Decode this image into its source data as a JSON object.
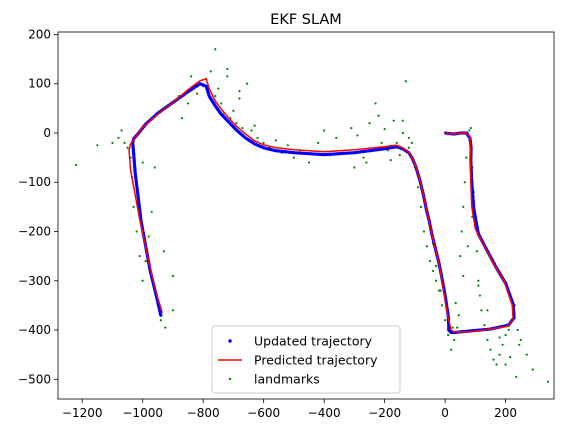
{
  "chart_data": {
    "type": "scatter",
    "title": "EKF SLAM",
    "xlabel": "",
    "ylabel": "",
    "xlim": [
      -1280,
      360
    ],
    "ylim": [
      -540,
      205
    ],
    "xticks": [
      -1200,
      -1000,
      -800,
      -600,
      -400,
      -200,
      0,
      200
    ],
    "yticks": [
      200,
      100,
      0,
      -100,
      -200,
      -300,
      -400,
      -500
    ],
    "grid": false,
    "legend_position": "bottom-center",
    "colors": {
      "updated": "#0000ff",
      "predicted": "#ff0000",
      "landmarks": "#008000"
    },
    "series": [
      {
        "name": "Updated trajectory",
        "style": "points",
        "x": [
          -940,
          -955,
          -975,
          -990,
          -1005,
          -1015,
          -1025,
          -1030,
          -1033,
          -1030,
          -1020,
          -990,
          -950,
          -900,
          -850,
          -810,
          -790,
          -780,
          -760,
          -740,
          -715,
          -690,
          -660,
          -630,
          -600,
          -560,
          -500,
          -450,
          -400,
          -350,
          -300,
          -250,
          -200,
          -180,
          -160,
          -140,
          -120,
          -108,
          -96,
          -84,
          -72,
          -62,
          -52,
          -44,
          -36,
          -28,
          -20,
          -12,
          0,
          10,
          12,
          12,
          20,
          30,
          80,
          150,
          210,
          228,
          225,
          200,
          168,
          140,
          110,
          95,
          88,
          85,
          86,
          82,
          70,
          50,
          30,
          10,
          2
        ],
        "y": [
          -370,
          -330,
          -280,
          -230,
          -180,
          -130,
          -80,
          -40,
          -20,
          -12,
          -5,
          18,
          40,
          62,
          84,
          100,
          95,
          75,
          55,
          38,
          22,
          6,
          -10,
          -22,
          -30,
          -36,
          -40,
          -42,
          -44,
          -42,
          -40,
          -36,
          -32,
          -30,
          -28,
          -32,
          -40,
          -52,
          -70,
          -95,
          -125,
          -155,
          -180,
          -205,
          -225,
          -245,
          -265,
          -290,
          -330,
          -370,
          -390,
          -400,
          -405,
          -405,
          -402,
          -398,
          -390,
          -375,
          -348,
          -305,
          -272,
          -240,
          -205,
          -155,
          -100,
          -55,
          -30,
          -10,
          0,
          0,
          -2,
          -1,
          0
        ]
      },
      {
        "name": "Predicted trajectory",
        "style": "line",
        "x": [
          -935,
          -955,
          -975,
          -992,
          -1010,
          -1025,
          -1040,
          -1045,
          -1040,
          -1000,
          -950,
          -900,
          -850,
          -810,
          -790,
          -780,
          -760,
          -740,
          -715,
          -690,
          -660,
          -630,
          -600,
          -560,
          -500,
          -450,
          -400,
          -350,
          -300,
          -250,
          -200,
          -180,
          -160,
          -140,
          -120,
          -108,
          -96,
          -84,
          -72,
          -62,
          -52,
          -44,
          -36,
          -28,
          -20,
          -12,
          0,
          10,
          20,
          30,
          80,
          150,
          210,
          225,
          222,
          195,
          160,
          130,
          100,
          88,
          85,
          84,
          84,
          82,
          70,
          50,
          30,
          10,
          2
        ],
        "y": [
          -365,
          -325,
          -275,
          -225,
          -175,
          -125,
          -75,
          -35,
          -22,
          12,
          38,
          62,
          88,
          106,
          110,
          90,
          65,
          48,
          30,
          14,
          -2,
          -16,
          -24,
          -30,
          -34,
          -36,
          -38,
          -36,
          -34,
          -31,
          -28,
          -26,
          -25,
          -30,
          -40,
          -52,
          -70,
          -95,
          -125,
          -155,
          -180,
          -205,
          -225,
          -245,
          -265,
          -295,
          -340,
          -375,
          -400,
          -404,
          -404,
          -398,
          -392,
          -378,
          -350,
          -300,
          -265,
          -230,
          -195,
          -150,
          -100,
          -60,
          -30,
          -8,
          0,
          0,
          -2,
          -1,
          0
        ]
      },
      {
        "name": "landmarks",
        "style": "points",
        "x": [
          -1220,
          -1150,
          -1100,
          -1080,
          -1070,
          -1050,
          -1040,
          -1035,
          -1030,
          -1020,
          -1010,
          -1000,
          -990,
          -980,
          -970,
          -960,
          -950,
          -940,
          -925,
          -900,
          -870,
          -850,
          -820,
          -800,
          -790,
          -775,
          -760,
          -750,
          -740,
          -730,
          -720,
          -710,
          -700,
          -690,
          -680,
          -670,
          -655,
          -640,
          -620,
          -600,
          -580,
          -560,
          -540,
          -520,
          -500,
          -480,
          -450,
          -420,
          -400,
          -380,
          -360,
          -340,
          -310,
          -290,
          -270,
          -250,
          -230,
          -210,
          -190,
          -170,
          -150,
          -140,
          -130,
          -120,
          -110,
          -100,
          -90,
          -80,
          -70,
          -60,
          -50,
          -40,
          -30,
          -20,
          -10,
          0,
          10,
          20,
          30,
          40,
          45,
          50,
          55,
          60,
          65,
          70,
          75,
          80,
          85,
          90,
          95,
          100,
          105,
          110,
          115,
          120,
          130,
          140,
          150,
          160,
          170,
          180,
          190,
          200,
          210,
          220,
          230,
          240,
          250,
          270,
          290,
          340,
          -630,
          -680,
          -720,
          -760,
          -840,
          -880,
          -1060,
          -1000,
          -960,
          -930,
          -900,
          -300,
          -260,
          -220,
          -200,
          -180,
          -160,
          -140,
          -120,
          -40,
          -30,
          -15,
          25,
          35,
          60,
          75,
          90,
          110,
          140,
          180,
          200,
          215,
          235,
          245
        ],
        "y": [
          -65,
          -25,
          -20,
          -10,
          5,
          -30,
          -50,
          -90,
          -150,
          -200,
          -250,
          -300,
          -260,
          -210,
          -160,
          -320,
          -350,
          -380,
          -395,
          -360,
          30,
          60,
          80,
          95,
          110,
          125,
          75,
          90,
          60,
          40,
          115,
          30,
          45,
          20,
          85,
          10,
          100,
          5,
          -10,
          -20,
          -30,
          -15,
          -40,
          -25,
          -50,
          -35,
          -60,
          -20,
          5,
          -45,
          -10,
          -40,
          10,
          -5,
          -50,
          20,
          60,
          -20,
          -35,
          25,
          -45,
          0,
          105,
          -10,
          -20,
          -70,
          -110,
          -150,
          -200,
          -230,
          -260,
          -280,
          -300,
          -320,
          -350,
          -380,
          -410,
          -440,
          -420,
          -395,
          -370,
          -250,
          -200,
          -150,
          -100,
          -50,
          0,
          5,
          10,
          -70,
          -120,
          -180,
          -240,
          -300,
          -330,
          -360,
          -390,
          -420,
          -440,
          -460,
          -470,
          -450,
          -430,
          -410,
          -400,
          -380,
          -350,
          -400,
          -420,
          -450,
          -480,
          -505,
          15,
          70,
          130,
          170,
          115,
          75,
          -20,
          -60,
          -70,
          -240,
          -290,
          -70,
          -60,
          35,
          8,
          -55,
          -20,
          25,
          -30,
          -225,
          -270,
          -320,
          -395,
          -345,
          -290,
          -230,
          -170,
          -310,
          -360,
          -415,
          -470,
          -455,
          -495,
          -430
        ]
      }
    ]
  }
}
